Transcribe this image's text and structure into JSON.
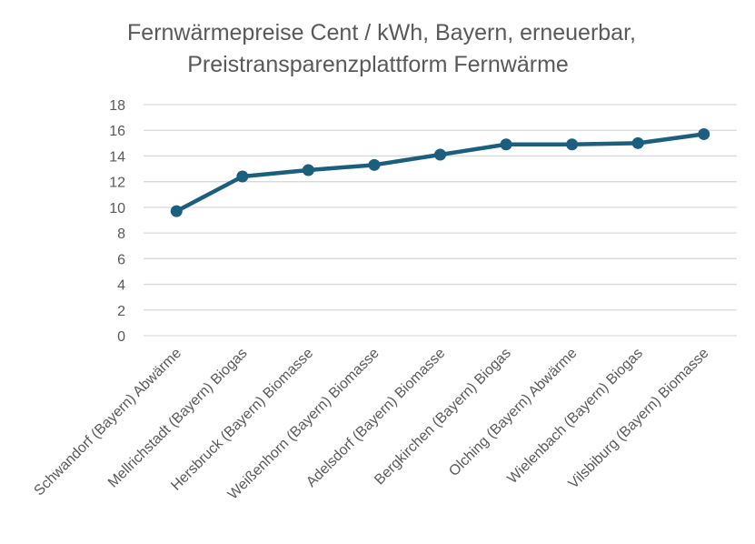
{
  "chart_data": {
    "type": "line",
    "title_lines": [
      "Fernwärmepreise Cent / kWh, Bayern, erneuerbar,",
      "Preistransparenzplattform Fernwärme"
    ],
    "categories": [
      "Schwandorf (Bayern) Abwärme",
      "Mellrichstadt (Bayern) Biogas",
      "Hersbruck (Bayern) Biomasse",
      "Weißenhorn (Bayern) Biomasse",
      "Adelsdorf (Bayern) Biomasse",
      "Bergkirchen (Bayern) Biogas",
      "Olching (Bayern) Abwärme",
      "Wielenbach (Bayern) Biogas",
      "Vilsbiburg (Bayern) Biomasse"
    ],
    "series": [
      {
        "values": [
          9.7,
          12.4,
          12.9,
          13.3,
          14.1,
          14.9,
          14.9,
          15.0,
          15.7
        ]
      }
    ],
    "ylim": [
      0,
      18
    ],
    "yticks": [
      0,
      2,
      4,
      6,
      8,
      10,
      12,
      14,
      16,
      18
    ],
    "grid": true,
    "colors": {
      "line": "#1b5e7e",
      "grid": "#d9d9d9",
      "text": "#595959"
    }
  }
}
